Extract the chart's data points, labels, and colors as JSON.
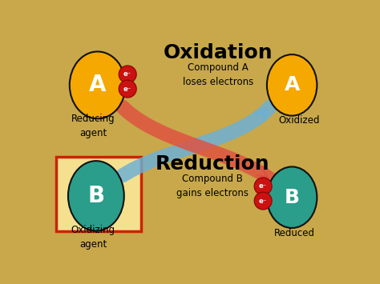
{
  "bg_color": "#c8a84b",
  "title_oxidation": "Oxidation",
  "subtitle_oxidation": "Compound A\nloses electrons",
  "title_reduction": "Reduction",
  "subtitle_reduction": "Compound B\ngains electrons",
  "label_A_left": "A",
  "label_A_right": "A",
  "label_B_left": "B",
  "label_B_right": "B",
  "reducing_agent": "Reducing\nagent",
  "oxidized": "Oxidized",
  "oxidizing_agent": "Oxidizing\nagent",
  "reduced": "Reduced",
  "electron_label": "e⁻",
  "color_A": "#f5a800",
  "color_B": "#2a9e8a",
  "color_electron": "#cc1111",
  "color_arrow_red": "#e05040",
  "color_arrow_blue": "#6ab0d8",
  "color_box": "#f5e090",
  "color_box_border": "#cc2200"
}
